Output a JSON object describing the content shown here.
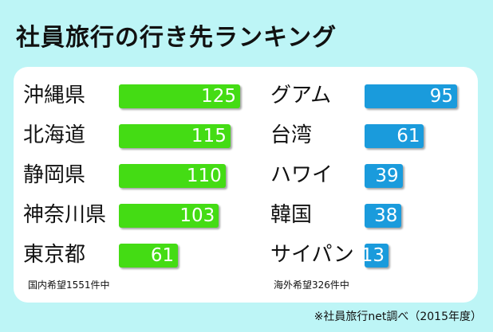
{
  "title": "社員旅行の行き先ランキング",
  "colors": {
    "background": "#bdf5f6",
    "domestic_bar": "#44dc14",
    "overseas_bar": "#1a9bdc"
  },
  "domestic_note": "国内希望1551件中",
  "overseas_note": "海外希望326件中",
  "source": "※社員旅行net調べ（2015年度）",
  "chart_data": [
    {
      "type": "bar",
      "orientation": "horizontal",
      "categories": [
        "沖縄県",
        "北海道",
        "静岡県",
        "神奈川県",
        "東京都"
      ],
      "values": [
        125,
        115,
        110,
        103,
        61
      ],
      "title": "",
      "xlabel": "",
      "ylabel": "",
      "ylim": [
        0,
        125
      ],
      "data_labels": true,
      "color": "#44dc14"
    },
    {
      "type": "bar",
      "orientation": "horizontal",
      "categories": [
        "グアム",
        "台湾",
        "ハワイ",
        "韓国",
        "サイパン"
      ],
      "values": [
        95,
        61,
        39,
        38,
        13
      ],
      "title": "",
      "xlabel": "",
      "ylabel": "",
      "ylim": [
        0,
        95
      ],
      "data_labels": true,
      "color": "#1a9bdc"
    }
  ]
}
